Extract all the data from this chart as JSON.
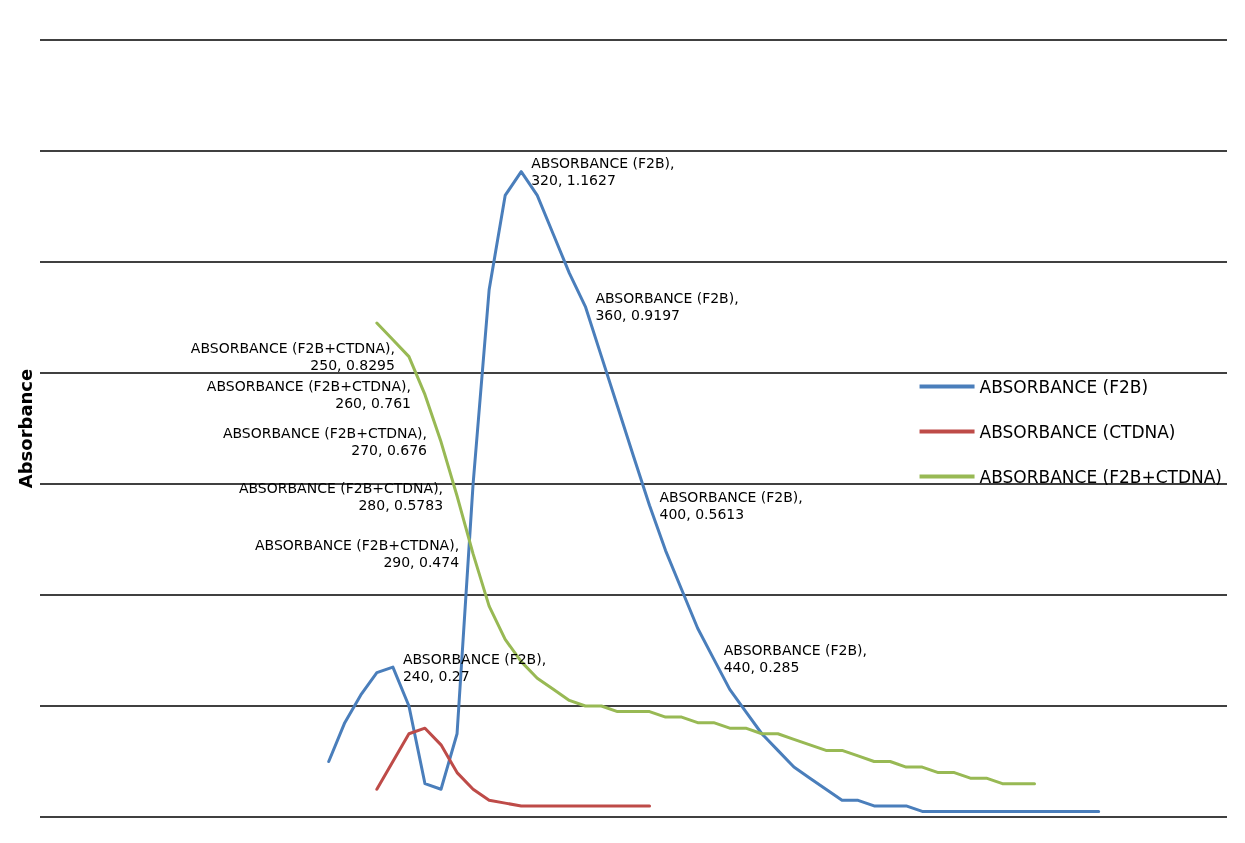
{
  "chart_data": {
    "type": "line",
    "ylabel": "Absorbance",
    "ylim": [
      0,
      1.4
    ],
    "categories": [
      null,
      null,
      null,
      null,
      null,
      null,
      null,
      null,
      null,
      null,
      null,
      null,
      null,
      null,
      null,
      null,
      null,
      null,
      null,
      null,
      null,
      null,
      null,
      null,
      null,
      null,
      null,
      null,
      null,
      null,
      null,
      null,
      null,
      null,
      null,
      null,
      null,
      null,
      null,
      null,
      null,
      null,
      null,
      null,
      null,
      null,
      null,
      null,
      null,
      null,
      null,
      null,
      null,
      null,
      null,
      null,
      null,
      null,
      null,
      null,
      null,
      null,
      null,
      null,
      null,
      null,
      null,
      null,
      null,
      null,
      null,
      null,
      null,
      null,
      null
    ],
    "yticks": [
      {
        "value": 0,
        "label": null
      },
      {
        "value": 0.2,
        "label": null
      },
      {
        "value": 0.4,
        "label": null
      },
      {
        "value": 0.6,
        "label": null
      },
      {
        "value": 0.8,
        "label": null
      },
      {
        "value": 1,
        "label": null
      },
      {
        "value": 1.2,
        "label": null
      },
      {
        "value": 1.4,
        "label": null
      }
    ],
    "tick_labels": false,
    "grid": "y",
    "legend": "right",
    "marker": "none",
    "line_style": "solid",
    "series": [
      {
        "name": "ABSORBANCE (F2B)",
        "color": "#4a7ebb",
        "values": [
          null,
          null,
          null,
          null,
          null,
          null,
          null,
          null,
          null,
          null,
          null,
          null,
          null,
          null,
          null,
          null,
          null,
          null,
          0.1,
          0.17,
          0.22,
          0.26,
          0.27,
          0.2,
          0.06,
          0.05,
          0.15,
          0.6,
          0.95,
          1.12,
          1.1627,
          1.12,
          1.05,
          0.98,
          0.9197,
          0.83,
          0.74,
          0.65,
          0.5613,
          0.48,
          0.41,
          0.34,
          0.285,
          0.23,
          0.19,
          0.15,
          0.12,
          0.09,
          0.07,
          0.05,
          0.03,
          0.03,
          0.02,
          0.02,
          0.02,
          0.01,
          0.01,
          0.01,
          0.01,
          0.01,
          0.01,
          0.01,
          0.01,
          0.01,
          0.01,
          0.01,
          0.01,
          null,
          null,
          null,
          null,
          null,
          null,
          null,
          null
        ],
        "value_labels": [
          null,
          null,
          null,
          null,
          null,
          null,
          null,
          null,
          null,
          null,
          null,
          null,
          null,
          null,
          null,
          null,
          null,
          null,
          null,
          null,
          null,
          null,
          "ABSORBANCE (F2B),\n240, 0.27",
          null,
          null,
          null,
          null,
          null,
          null,
          null,
          "ABSORBANCE (F2B),\n320, 1.1627",
          null,
          null,
          null,
          "ABSORBANCE (F2B),\n360, 0.9197",
          null,
          null,
          null,
          "ABSORBANCE (F2B),\n400, 0.5613",
          null,
          null,
          null,
          "ABSORBANCE (F2B),\n440, 0.285",
          null,
          null,
          null,
          null,
          null,
          null,
          null,
          null,
          null,
          null,
          null,
          null,
          null,
          null,
          null,
          null,
          null,
          null,
          null,
          null,
          null,
          null,
          null,
          null,
          null,
          null,
          null,
          null,
          null,
          null,
          null,
          null
        ]
      },
      {
        "name": "ABSORBANCE (CTDNA)",
        "color": "#be4b48",
        "values": [
          null,
          null,
          null,
          null,
          null,
          null,
          null,
          null,
          null,
          null,
          null,
          null,
          null,
          null,
          null,
          null,
          null,
          null,
          null,
          null,
          null,
          0.05,
          0.1,
          0.15,
          0.16,
          0.13,
          0.08,
          0.05,
          0.03,
          0.025,
          0.02,
          0.02,
          0.02,
          0.02,
          0.02,
          0.02,
          0.02,
          0.02,
          0.02,
          null,
          null,
          null,
          null,
          null,
          null,
          null,
          null,
          null,
          null,
          null,
          null,
          null,
          null,
          null,
          null,
          null,
          null,
          null,
          null,
          null,
          null,
          null,
          null,
          null,
          null,
          null,
          null,
          null,
          null,
          null,
          null,
          null,
          null,
          null,
          null
        ]
      },
      {
        "name": "ABSORBANCE (F2B+CTDNA)",
        "color": "#98b954",
        "values": [
          null,
          null,
          null,
          null,
          null,
          null,
          null,
          null,
          null,
          null,
          null,
          null,
          null,
          null,
          null,
          null,
          null,
          null,
          null,
          null,
          null,
          0.89,
          0.86,
          0.8295,
          0.761,
          0.676,
          0.5783,
          0.474,
          0.38,
          0.32,
          0.28,
          0.25,
          0.23,
          0.21,
          0.2,
          0.2,
          0.19,
          0.19,
          0.19,
          0.18,
          0.18,
          0.17,
          0.17,
          0.16,
          0.16,
          0.15,
          0.15,
          0.14,
          0.13,
          0.12,
          0.12,
          0.11,
          0.1,
          0.1,
          0.09,
          0.09,
          0.08,
          0.08,
          0.07,
          0.07,
          0.06,
          0.06,
          0.06,
          null,
          null,
          null,
          null,
          null,
          null,
          null,
          null,
          null,
          null,
          null,
          null
        ],
        "value_labels": [
          null,
          null,
          null,
          null,
          null,
          null,
          null,
          null,
          null,
          null,
          null,
          null,
          null,
          null,
          null,
          null,
          null,
          null,
          null,
          null,
          null,
          null,
          null,
          "ABSORBANCE (F2B+CTDNA),\n250, 0.8295",
          "ABSORBANCE (F2B+CTDNA),\n260, 0.761",
          "ABSORBANCE (F2B+CTDNA),\n270, 0.676",
          "ABSORBANCE (F2B+CTDNA),\n280, 0.5783",
          "ABSORBANCE (F2B+CTDNA),\n290, 0.474",
          null,
          null,
          null,
          null,
          null,
          null,
          null,
          null,
          null,
          null,
          null,
          null,
          null,
          null,
          null,
          null,
          null,
          null,
          null,
          null,
          null,
          null,
          null,
          null,
          null,
          null,
          null,
          null,
          null,
          null,
          null,
          null,
          null,
          null,
          null,
          null,
          null,
          null,
          null,
          null,
          null,
          null,
          null,
          null,
          null,
          null,
          null
        ]
      }
    ]
  }
}
